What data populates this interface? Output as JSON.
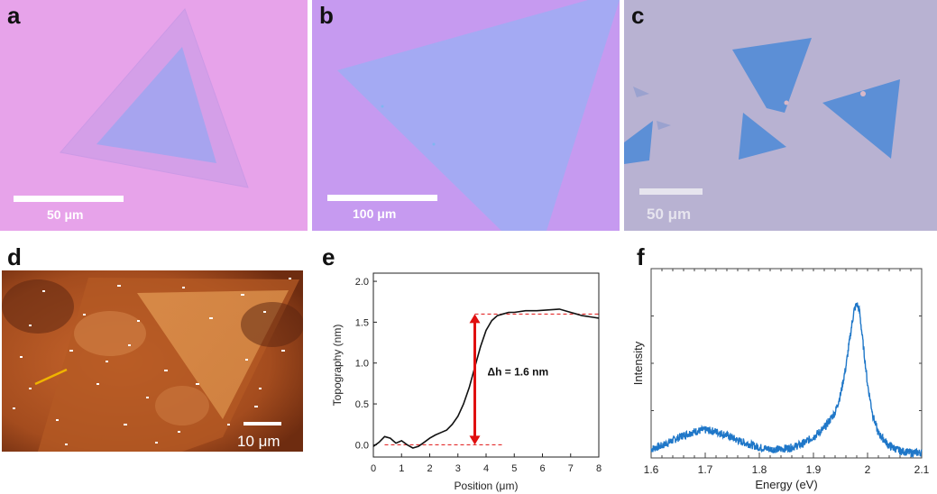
{
  "panels": {
    "a": {
      "label": "a",
      "scale": "50 μm"
    },
    "b": {
      "label": "b",
      "scale": "100 μm"
    },
    "c": {
      "label": "c",
      "scale": "50 μm"
    },
    "d": {
      "label": "d",
      "scale": "10 μm"
    },
    "e": {
      "label": "e"
    },
    "f": {
      "label": "f"
    }
  },
  "colors": {
    "substrate_a": "#e7a3ea",
    "substrate_b": "#c79bef",
    "substrate_c": "#b8b2d2",
    "flake_blue": "#9aa6ef",
    "afm_orange": "#c8662c",
    "profile_line": "#f0b400",
    "arrow_red": "#e01010",
    "pl_blue": "#1f77c8"
  },
  "chart_data": [
    {
      "panel": "e",
      "type": "line",
      "xlabel": "Position (μm)",
      "ylabel": "Topography (nm)",
      "xlim": [
        0,
        8
      ],
      "ylim": [
        -0.15,
        2.1
      ],
      "xticks": [
        0,
        1,
        2,
        3,
        4,
        5,
        6,
        7,
        8
      ],
      "yticks": [
        0.0,
        0.5,
        1.0,
        1.5,
        2.0
      ],
      "ytick_labels": [
        "0.0",
        "0.5",
        "1.0",
        "1.5",
        "2.0"
      ],
      "annotation": "Δh = 1.6 nm",
      "reference_levels": [
        0.0,
        1.6
      ],
      "arrow_x": 3.6,
      "series": [
        {
          "x": [
            0,
            0.2,
            0.4,
            0.6,
            0.8,
            1.0,
            1.2,
            1.4,
            1.6,
            1.8,
            2.0,
            2.2,
            2.4,
            2.6,
            2.8,
            3.0,
            3.2,
            3.4,
            3.6,
            3.8,
            4.0,
            4.2,
            4.4,
            4.6,
            4.8,
            5.0,
            5.4,
            5.8,
            6.2,
            6.6,
            7.0,
            7.4,
            7.8,
            8.0
          ],
          "values": [
            -0.02,
            0.03,
            0.1,
            0.08,
            0.02,
            0.05,
            0.0,
            -0.04,
            -0.02,
            0.03,
            0.08,
            0.12,
            0.15,
            0.18,
            0.25,
            0.35,
            0.5,
            0.7,
            0.95,
            1.2,
            1.4,
            1.52,
            1.58,
            1.6,
            1.62,
            1.62,
            1.64,
            1.64,
            1.65,
            1.66,
            1.62,
            1.58,
            1.56,
            1.55
          ]
        }
      ]
    },
    {
      "panel": "f",
      "type": "line",
      "xlabel": "Energy (eV)",
      "ylabel": "Intensity",
      "xlim": [
        1.6,
        2.1
      ],
      "xticks": [
        1.6,
        1.7,
        1.8,
        1.9,
        2.0,
        2.1
      ],
      "xtick_labels": [
        "1.6",
        "1.7",
        "1.8",
        "1.9",
        "2",
        "2.1"
      ],
      "ylim": [
        0,
        1.08
      ],
      "series": [
        {
          "x": [
            1.6,
            1.62,
            1.64,
            1.66,
            1.68,
            1.7,
            1.72,
            1.74,
            1.76,
            1.78,
            1.8,
            1.82,
            1.84,
            1.86,
            1.88,
            1.9,
            1.92,
            1.94,
            1.95,
            1.96,
            1.97,
            1.975,
            1.98,
            1.985,
            1.99,
            2.0,
            2.01,
            2.02,
            2.04,
            2.06,
            2.08,
            2.1
          ],
          "values": [
            0.05,
            0.07,
            0.1,
            0.13,
            0.15,
            0.16,
            0.15,
            0.13,
            0.1,
            0.08,
            0.06,
            0.05,
            0.05,
            0.06,
            0.08,
            0.12,
            0.17,
            0.26,
            0.36,
            0.52,
            0.74,
            0.84,
            0.88,
            0.84,
            0.7,
            0.42,
            0.24,
            0.14,
            0.07,
            0.04,
            0.03,
            0.03
          ]
        }
      ]
    }
  ]
}
